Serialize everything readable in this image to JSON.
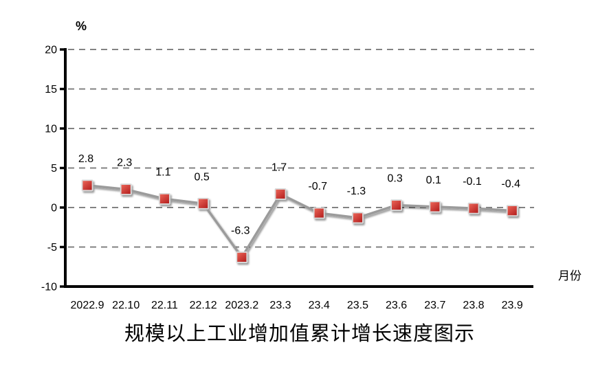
{
  "chart_data": {
    "type": "line",
    "title": "规模以上工业增加值累计增长速度图示",
    "unit_label": "%",
    "xlabel": "月份",
    "categories": [
      "2022.9",
      "22.10",
      "22.11",
      "22.12",
      "2023.2",
      "23.3",
      "23.4",
      "23.5",
      "23.6",
      "23.7",
      "23.8",
      "23.9"
    ],
    "values": [
      2.8,
      2.3,
      1.1,
      0.5,
      -6.3,
      1.7,
      -0.7,
      -1.3,
      0.3,
      0.1,
      -0.1,
      -0.4
    ],
    "data_labels": [
      "2.8",
      "2.3",
      "1.1",
      "0.5",
      "-6.3",
      "1.7",
      "-0.7",
      "-1.3",
      "0.3",
      "0.1",
      "-0.1",
      "-0.4"
    ],
    "yticks": [
      20,
      15,
      10,
      5,
      0,
      -5,
      -10
    ],
    "ylim": [
      -10,
      20
    ],
    "grid": "dashed-horizontal",
    "legend": "none",
    "colors": {
      "marker_fill_light": "#ee6a5c",
      "marker_fill_dark": "#b5201f",
      "marker_border": "#d9d9d9",
      "series_line": "#9b9b9b",
      "gridline": "#828282",
      "axis": "#000000",
      "text": "#000000"
    }
  }
}
